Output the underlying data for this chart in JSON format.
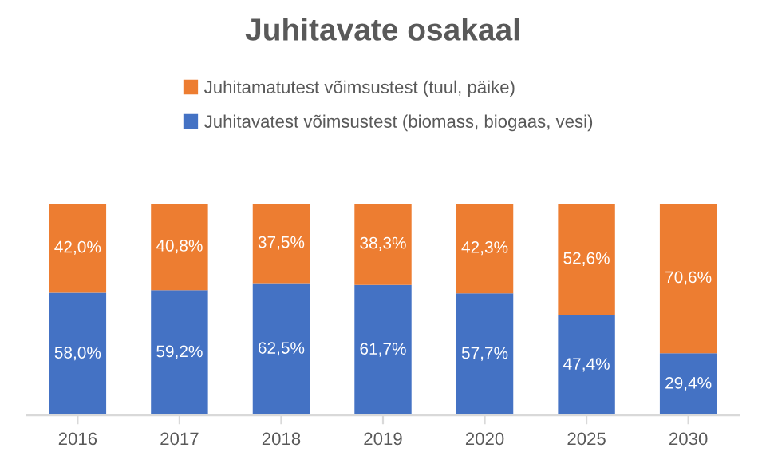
{
  "chart_data": {
    "type": "bar",
    "title": "Juhitavate osakaal",
    "stacked": true,
    "legend": "top",
    "categories": [
      "2016",
      "2017",
      "2018",
      "2019",
      "2020",
      "2025",
      "2030"
    ],
    "series": [
      {
        "name": "Juhitavatest võimsustest (biomass, biogaas, vesi)",
        "color": "#4472c4",
        "values": [
          58.0,
          59.2,
          62.5,
          61.7,
          57.7,
          47.4,
          29.4
        ],
        "value_labels": [
          "58,0%",
          "59,2%",
          "62,5%",
          "61,7%",
          "57,7%",
          "47,4%",
          "29,4%"
        ]
      },
      {
        "name": "Juhitamatutest võimsustest (tuul, päike)",
        "color": "#ed7d31",
        "values": [
          42.0,
          40.8,
          37.5,
          38.3,
          42.3,
          52.6,
          70.6
        ],
        "value_labels": [
          "42,0%",
          "40,8%",
          "37,5%",
          "38,3%",
          "42,3%",
          "52,6%",
          "70,6%"
        ]
      }
    ]
  }
}
